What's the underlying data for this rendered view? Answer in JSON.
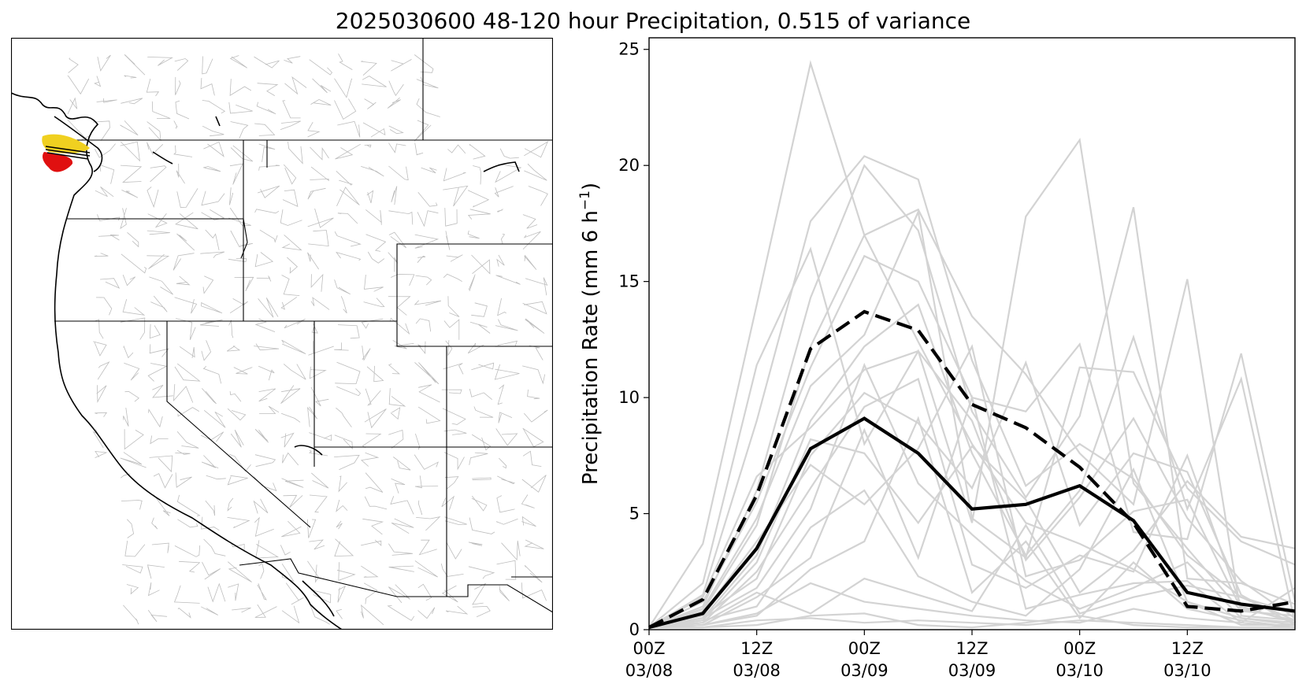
{
  "title": "2025030600 48-120 hour Precipitation, 0.515 of variance",
  "colors": {
    "member": "#d3d3d3",
    "mean": "#000000",
    "highlight": "#000000",
    "map_watershed": "#b8b8b8",
    "map_border": "#000000",
    "map_high": "#f0d020",
    "map_low": "#e01010"
  },
  "chart_data": {
    "type": "line",
    "xlabel": "",
    "ylabel": "Precipitation Rate (mm 6 h",
    "ylabel_sup": "−1",
    "ylabel_close": ")",
    "ylim": [
      0,
      25.5
    ],
    "x_index_range": [
      0,
      12
    ],
    "yticks": [
      "0",
      "5",
      "10",
      "15",
      "20",
      "25"
    ],
    "xticks": [
      {
        "top": "00Z",
        "bottom": "03/08"
      },
      {
        "top": "12Z",
        "bottom": "03/08"
      },
      {
        "top": "00Z",
        "bottom": "03/09"
      },
      {
        "top": "12Z",
        "bottom": "03/09"
      },
      {
        "top": "00Z",
        "bottom": "03/10"
      },
      {
        "top": "12Z",
        "bottom": "03/10"
      }
    ],
    "members": [
      [
        0.1,
        3.7,
        14.0,
        24.4,
        17.0,
        12.4,
        8.0,
        4.6,
        3.7,
        2.6,
        1.2,
        0.5,
        0.3
      ],
      [
        0.1,
        1.5,
        9.0,
        17.6,
        20.4,
        19.4,
        11.6,
        6.2,
        8.0,
        6.5,
        3.2,
        1.4,
        0.7
      ],
      [
        0.1,
        2.0,
        11.4,
        16.4,
        8.0,
        12.0,
        4.6,
        17.8,
        21.1,
        6.3,
        3.5,
        0.8,
        0.6
      ],
      [
        0.1,
        1.0,
        6.0,
        14.3,
        20.0,
        17.2,
        9.4,
        5.7,
        9.2,
        18.2,
        2.2,
        2.0,
        1.1
      ],
      [
        0.1,
        0.8,
        4.5,
        12.2,
        17.0,
        18.1,
        13.5,
        11.0,
        7.6,
        5.4,
        15.1,
        0.6,
        0.4
      ],
      [
        0.1,
        1.2,
        5.5,
        11.3,
        16.1,
        15.0,
        10.0,
        9.4,
        12.3,
        4.2,
        3.9,
        11.9,
        1.2
      ],
      [
        0.1,
        0.5,
        3.2,
        9.0,
        12.2,
        14.0,
        7.6,
        3.2,
        6.0,
        12.6,
        5.2,
        10.8,
        0.3
      ],
      [
        0.1,
        0.9,
        4.8,
        10.5,
        12.7,
        18.0,
        4.8,
        3.1,
        11.3,
        11.1,
        6.1,
        3.8,
        2.8
      ],
      [
        0.1,
        1.4,
        6.6,
        8.7,
        11.2,
        12.0,
        9.0,
        3.0,
        5.7,
        9.1,
        4.8,
        2.1,
        0.5
      ],
      [
        0.1,
        0.6,
        2.2,
        7.5,
        10.2,
        8.9,
        6.1,
        11.5,
        4.5,
        7.6,
        6.8,
        1.5,
        0.2
      ],
      [
        0.1,
        0.4,
        2.9,
        8.2,
        7.6,
        4.6,
        7.9,
        5.6,
        1.6,
        3.4,
        6.4,
        4.0,
        3.5
      ],
      [
        0.1,
        0.3,
        2.5,
        6.1,
        9.6,
        10.8,
        2.8,
        1.8,
        3.2,
        2.5,
        7.5,
        1.0,
        0.3
      ],
      [
        0.1,
        0.7,
        3.8,
        7.1,
        5.4,
        7.8,
        12.2,
        2.3,
        3.0,
        5.1,
        5.6,
        0.9,
        0.4
      ],
      [
        0.1,
        0.5,
        1.8,
        5.2,
        11.4,
        6.3,
        4.1,
        2.1,
        0.9,
        1.8,
        2.9,
        0.5,
        0.2
      ],
      [
        0.1,
        0.2,
        1.4,
        3.1,
        8.6,
        3.1,
        10.0,
        0.9,
        1.5,
        2.0,
        2.1,
        0.3,
        1.8
      ],
      [
        0.1,
        0.4,
        1.0,
        4.4,
        6.0,
        2.3,
        1.2,
        0.6,
        2.6,
        6.9,
        1.2,
        0.2,
        0.2
      ],
      [
        0.1,
        0.2,
        0.6,
        2.6,
        3.8,
        9.1,
        1.6,
        3.8,
        0.5,
        2.9,
        0.9,
        0.4,
        0.1
      ],
      [
        0.1,
        0.3,
        1.6,
        0.7,
        2.2,
        1.5,
        0.8,
        4.5,
        0.7,
        1.4,
        1.9,
        1.4,
        0.4
      ],
      [
        0.1,
        0.2,
        0.7,
        2.0,
        1.2,
        0.9,
        0.6,
        0.4,
        0.3,
        0.9,
        0.5,
        0.3,
        0.1
      ],
      [
        0.1,
        0.1,
        0.4,
        0.5,
        0.3,
        0.4,
        0.3,
        0.2,
        0.4,
        0.3,
        0.2,
        0.1,
        0.1
      ],
      [
        0.1,
        0.1,
        0.2,
        0.6,
        0.7,
        0.2,
        0.1,
        0.3,
        0.6,
        0.2,
        0.1,
        0.1,
        0.1
      ]
    ],
    "mean": [
      0.1,
      0.7,
      3.5,
      7.8,
      9.1,
      7.6,
      5.2,
      5.4,
      6.2,
      4.7,
      1.6,
      1.1,
      0.8
    ],
    "highlight": [
      0.1,
      1.3,
      5.8,
      12.1,
      13.7,
      12.9,
      9.7,
      8.7,
      7.0,
      4.6,
      1.0,
      0.8,
      1.2
    ]
  }
}
